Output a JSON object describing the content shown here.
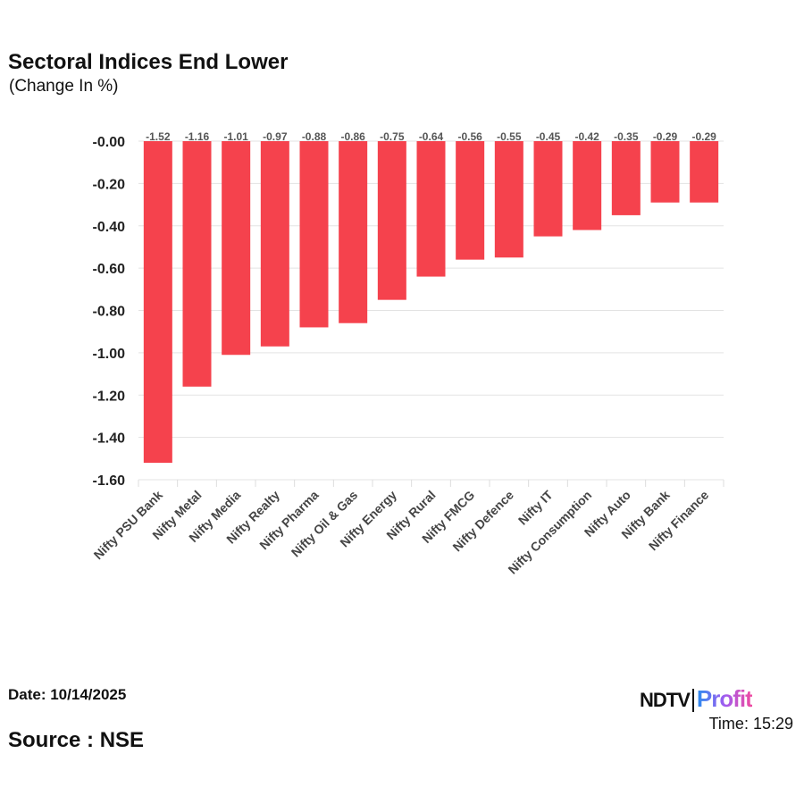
{
  "header": {
    "title": "Sectoral Indices End Lower",
    "subtitle": "(Change In %)"
  },
  "footer": {
    "date": "Date: 10/14/2025",
    "time": "Time: 15:29",
    "source": "Source : NSE",
    "logo_left": "NDTV",
    "logo_right": "Profit"
  },
  "chart_data": {
    "type": "bar",
    "title": "Sectoral Indices End Lower",
    "subtitle": "(Change In %)",
    "xlabel": "",
    "ylabel": "",
    "ylim": [
      -1.6,
      0
    ],
    "yticks": [
      "-0.00",
      "-0.20",
      "-0.40",
      "-0.60",
      "-0.80",
      "-1.00",
      "-1.20",
      "-1.40",
      "-1.60"
    ],
    "grid": true,
    "bar_color": "#f5424d",
    "categories": [
      "Nifty PSU Bank",
      "Nifty Metal",
      "Nifty Media",
      "Nifty Realty",
      "Nifty Pharma",
      "Nifty Oil & Gas",
      "Nifty Energy",
      "Nifty Rural",
      "Nifty FMCG",
      "Nifty Defence",
      "Nifty IT",
      "Nifty Consumption",
      "Nifty Auto",
      "Nifty Bank",
      "Nifty Finance"
    ],
    "values": [
      -1.52,
      -1.16,
      -1.01,
      -0.97,
      -0.88,
      -0.86,
      -0.75,
      -0.64,
      -0.56,
      -0.55,
      -0.45,
      -0.42,
      -0.35,
      -0.29,
      -0.29
    ],
    "labels": [
      "-1.52",
      "-1.16",
      "-1.01",
      "-0.97",
      "-0.88",
      "-0.86",
      "-0.75",
      "-0.64",
      "-0.56",
      "-0.55",
      "-0.45",
      "-0.42",
      "-0.35",
      "-0.29",
      "-0.29"
    ]
  }
}
